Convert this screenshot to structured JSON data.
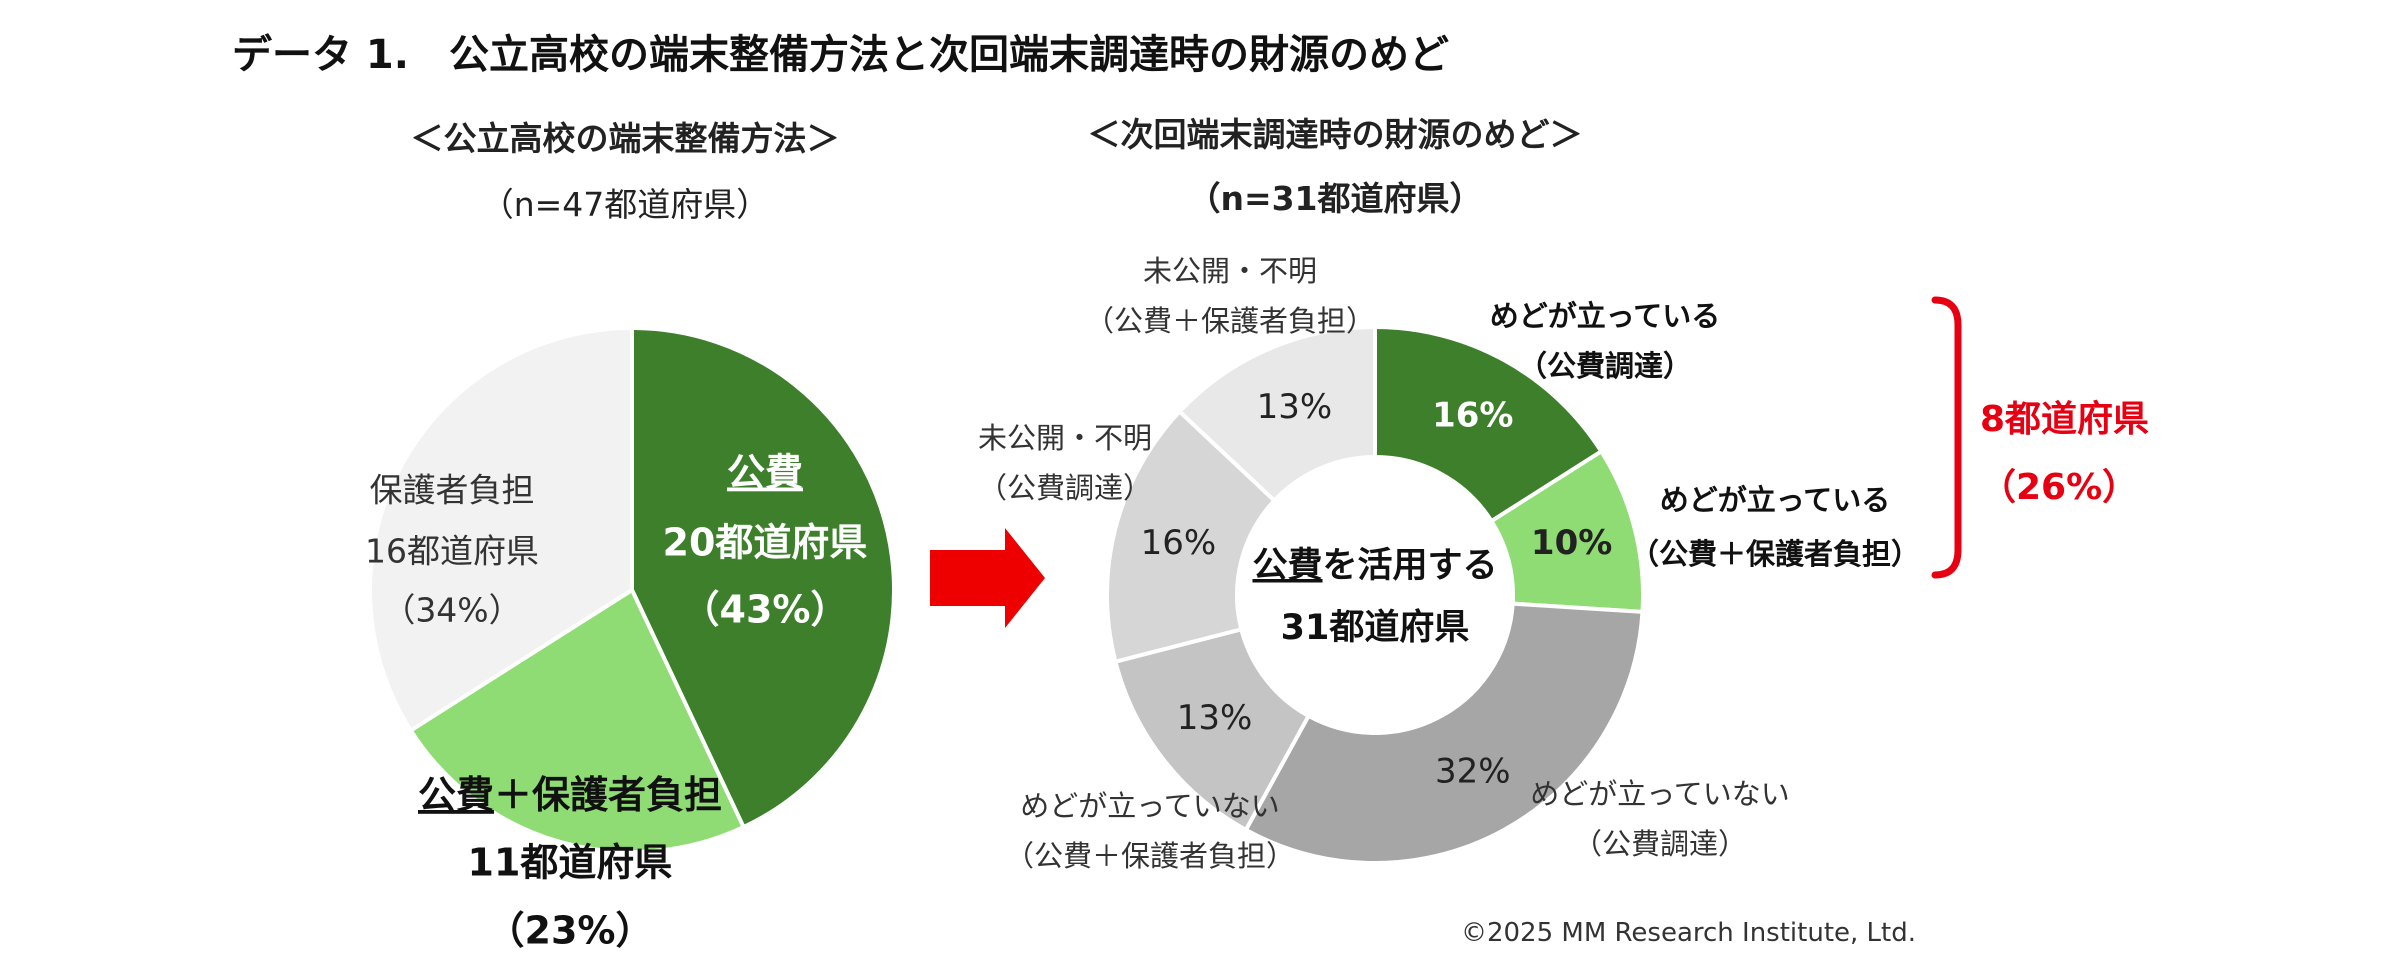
{
  "title": "データ 1.　公立高校の端末整備方法と次回端末調達時の財源のめど",
  "copyright": "©2025 MM Research Institute, Ltd.",
  "colors": {
    "public": "#3d7f2b",
    "public_plus_parent": "#8fdc74",
    "parent": "#f2f2f2",
    "unknown_parent": "#e8e8e8",
    "unknown_public": "#d6d6d6",
    "none_parent": "#c4c4c4",
    "none_public": "#a6a6a6",
    "bracket": "#e60012",
    "arrow": "#ee0000"
  },
  "chart_data": [
    {
      "type": "pie",
      "title": "＜公立高校の端末整備方法＞",
      "subtitle": "（n=47都道府県）",
      "slices": [
        {
          "name": "公費",
          "count_label": "20都道府県",
          "value": 43,
          "pct_label": "（43%）",
          "color": "#3d7f2b"
        },
        {
          "name": "公費＋保護者負担",
          "count_label": "11都道府県",
          "value": 23,
          "pct_label": "（23%）",
          "color": "#8fdc74"
        },
        {
          "name": "保護者負担",
          "count_label": "16都道府県",
          "value": 34,
          "pct_label": "（34%）",
          "color": "#f2f2f2"
        }
      ]
    },
    {
      "type": "donut",
      "title": "＜次回端末調達時の財源のめど＞",
      "subtitle": "（n=31都道府県）",
      "center_line1_underlined": "公費",
      "center_line1_rest": "を活用する",
      "center_line2": "31都道府県",
      "slices": [
        {
          "value": 16,
          "pct_label": "16%",
          "line1": "めどが立っている",
          "line2": "（公費調達）",
          "color": "#3d7f2b"
        },
        {
          "value": 10,
          "pct_label": "10%",
          "line1": "めどが立っている",
          "line2": "（公費＋保護者負担）",
          "color": "#8fdc74"
        },
        {
          "value": 32,
          "pct_label": "32%",
          "line1": "めどが立っていない",
          "line2": "（公費調達）",
          "color": "#a6a6a6"
        },
        {
          "value": 13,
          "pct_label": "13%",
          "line1": "めどが立っていない",
          "line2": "（公費＋保護者負担）",
          "color": "#c4c4c4"
        },
        {
          "value": 16,
          "pct_label": "16%",
          "line1": "未公開・不明",
          "line2": "（公費調達）",
          "color": "#d6d6d6"
        },
        {
          "value": 13,
          "pct_label": "13%",
          "line1": "未公開・不明",
          "line2": "（公費＋保護者負担）",
          "color": "#e8e8e8"
        }
      ],
      "bracket_label_count": "8都道府県",
      "bracket_label_pct": "（26%）"
    }
  ]
}
